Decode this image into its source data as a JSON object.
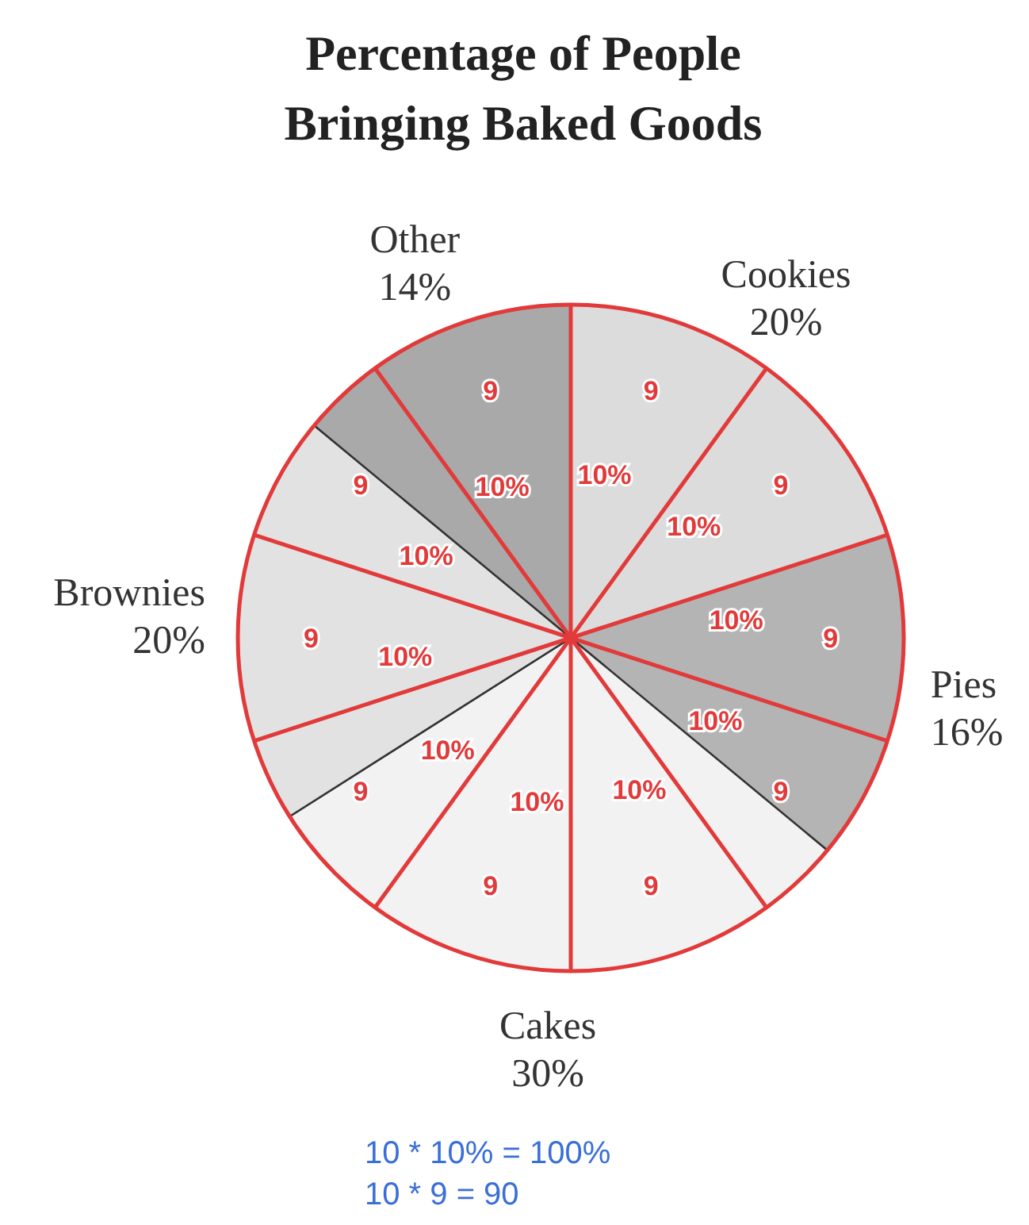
{
  "chart_data": [
    {
      "type": "pie",
      "title": "Percentage of People Bringing Baked Goods",
      "categories": [
        "Cookies",
        "Pies",
        "Cakes",
        "Brownies",
        "Other"
      ],
      "values": [
        20,
        16,
        30,
        20,
        14
      ],
      "colors": [
        "#dcdcdc",
        "#b4b4b4",
        "#f2f2f2",
        "#e2e2e2",
        "#a9a9a9"
      ],
      "value_labels": [
        "20%",
        "16%",
        "30%",
        "20%",
        "14%"
      ]
    },
    {
      "type": "other",
      "categories": [
        null,
        null,
        null,
        null,
        null,
        null,
        null,
        null,
        null,
        null
      ],
      "annotations": [
        "10%",
        "10%",
        "10%",
        "10%",
        "10%",
        "10%",
        "10%",
        "10%",
        "10%",
        "10%",
        "9",
        "9",
        "9",
        "9",
        "9",
        "9",
        "9",
        "9",
        "9",
        "9",
        "10 * 10% = 100%",
        "10 * 9 = 90"
      ]
    }
  ]
}
